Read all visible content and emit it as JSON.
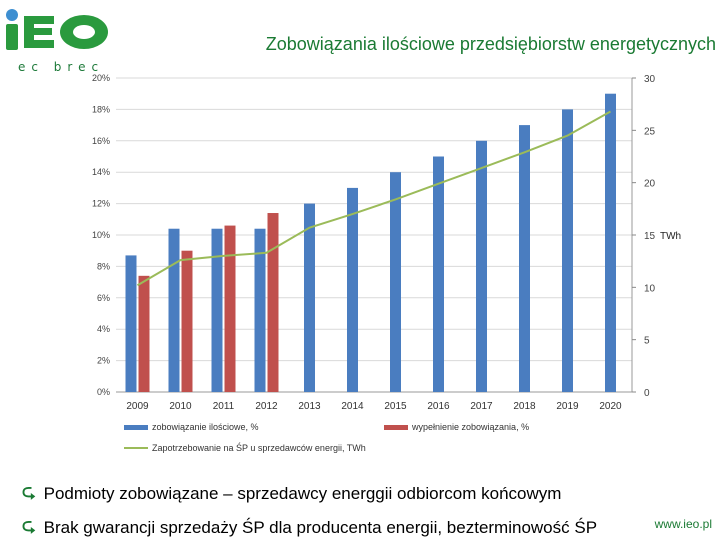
{
  "logo": {
    "letters": "iEO",
    "subtitle": "ec brec"
  },
  "title": "Zobowiązania ilościowe przedsiębiorstw energetycznych",
  "chart_data": {
    "type": "bar",
    "categories": [
      "2009",
      "2010",
      "2011",
      "2012",
      "2013",
      "2014",
      "2015",
      "2016",
      "2017",
      "2018",
      "2019",
      "2020"
    ],
    "series": [
      {
        "name": "zobowiązanie ilościowe, %",
        "axis": "left",
        "kind": "bar",
        "color": "#4a7dc0",
        "values": [
          8.7,
          10.4,
          10.4,
          10.4,
          12,
          13,
          14,
          15,
          16,
          17,
          18,
          19
        ]
      },
      {
        "name": "wypełnienie zobowiązania, %",
        "axis": "left",
        "kind": "bar",
        "color": "#c0504d",
        "values": [
          7.4,
          9.0,
          10.6,
          11.4,
          null,
          null,
          null,
          null,
          null,
          null,
          null,
          null
        ]
      },
      {
        "name": "Zapotrzebowanie na ŚP u sprzedawców energii, TWh",
        "axis": "right",
        "kind": "line",
        "color": "#9bbb59",
        "values": [
          10.2,
          12.6,
          13,
          13.3,
          15.7,
          17,
          18.4,
          19.9,
          21.4,
          22.9,
          24.5,
          26.8
        ]
      }
    ],
    "y_left": {
      "ticks": [
        "0%",
        "2%",
        "4%",
        "6%",
        "8%",
        "10%",
        "12%",
        "14%",
        "16%",
        "18%",
        "20%"
      ],
      "min": 0,
      "max": 20
    },
    "y_right": {
      "ticks": [
        "0",
        "5",
        "10",
        "15",
        "20",
        "25",
        "30"
      ],
      "min": 0,
      "max": 30,
      "label": "TWh"
    },
    "legend_position": "bottom"
  },
  "bullets": [
    "Podmioty zobowiązane – sprzedawcy energgii odbiorcom końcowym",
    "Brak gwarancji sprzedaży ŚP dla producenta energii, bezterminowość ŚP"
  ],
  "footer": {
    "url": "www.ieo.pl"
  },
  "colors": {
    "green": "#1a7a33",
    "bar_blue": "#4a7dc0",
    "bar_red": "#c0504d",
    "line_green": "#9bbb59"
  },
  "icons": {
    "bullet": "circle-arrow-icon"
  }
}
